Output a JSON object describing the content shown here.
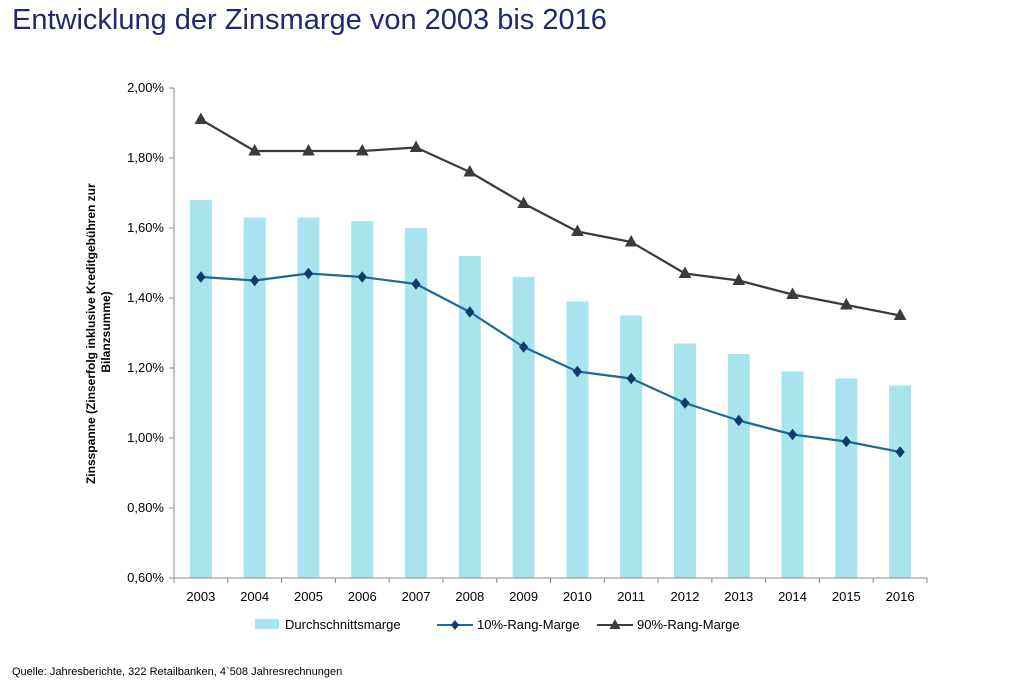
{
  "title": "Entwicklung der Zinsmarge von 2003 bis 2016",
  "source": "Quelle: Jahresberichte, 322 Retailbanken, 4`508 Jahresrechnungen",
  "colors": {
    "bar": "#a9e3ee",
    "line_10": "#1b6b94",
    "line_90": "#3b3b3b",
    "title": "#1f2a6b"
  },
  "chart_data": {
    "type": "bar",
    "title": "Entwicklung der Zinsmarge von 2003 bis 2016",
    "ylabel_lines": [
      "Zinsspanne (Zinserfolg inklusive Kreditgebühren zur",
      "Bilanzsumme)"
    ],
    "xlabel": "",
    "ylim": [
      0.6,
      2.0
    ],
    "yticks": [
      0.6,
      0.8,
      1.0,
      1.2,
      1.4,
      1.6,
      1.8,
      2.0
    ],
    "ytick_labels": [
      "0,60%",
      "0,80%",
      "1,00%",
      "1,20%",
      "1,40%",
      "1,60%",
      "1,80%",
      "2,00%"
    ],
    "grid": false,
    "legend_position": "bottom",
    "categories": [
      "2003",
      "2004",
      "2005",
      "2006",
      "2007",
      "2008",
      "2009",
      "2010",
      "2011",
      "2012",
      "2013",
      "2014",
      "2015",
      "2016"
    ],
    "series": [
      {
        "name": "Durchschnittsmarge",
        "type": "bar",
        "values": [
          1.68,
          1.63,
          1.63,
          1.62,
          1.6,
          1.52,
          1.46,
          1.39,
          1.35,
          1.27,
          1.24,
          1.19,
          1.17,
          1.15
        ]
      },
      {
        "name": "10%-Rang-Marge",
        "type": "line",
        "marker": "diamond",
        "values": [
          1.46,
          1.45,
          1.47,
          1.46,
          1.44,
          1.36,
          1.26,
          1.19,
          1.17,
          1.1,
          1.05,
          1.01,
          0.99,
          0.96
        ]
      },
      {
        "name": "90%-Rang-Marge",
        "type": "line",
        "marker": "triangle",
        "values": [
          1.91,
          1.82,
          1.82,
          1.82,
          1.83,
          1.76,
          1.67,
          1.59,
          1.56,
          1.47,
          1.45,
          1.41,
          1.38,
          1.35
        ]
      }
    ]
  }
}
